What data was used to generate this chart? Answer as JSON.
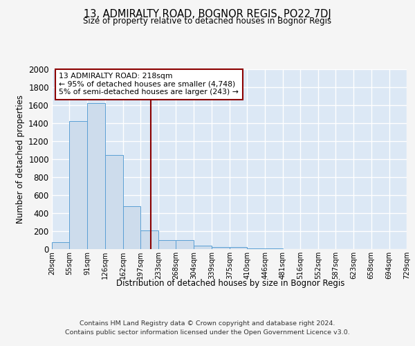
{
  "title": "13, ADMIRALTY ROAD, BOGNOR REGIS, PO22 7DJ",
  "subtitle": "Size of property relative to detached houses in Bognor Regis",
  "xlabel": "Distribution of detached houses by size in Bognor Regis",
  "ylabel": "Number of detached properties",
  "footnote1": "Contains HM Land Registry data © Crown copyright and database right 2024.",
  "footnote2": "Contains public sector information licensed under the Open Government Licence v3.0.",
  "bin_edges": [
    20,
    55,
    91,
    126,
    162,
    197,
    233,
    268,
    304,
    339,
    375,
    410,
    446,
    481,
    516,
    552,
    587,
    623,
    658,
    694,
    729
  ],
  "bar_heights": [
    75,
    1420,
    1620,
    1050,
    480,
    205,
    100,
    100,
    35,
    25,
    20,
    5,
    5,
    3,
    3,
    2,
    1,
    1,
    0,
    0
  ],
  "bar_color": "#cddcec",
  "bar_edge_color": "#5a9fd4",
  "red_line_x": 218,
  "annotation_text_line1": "13 ADMIRALTY ROAD: 218sqm",
  "annotation_text_line2": "← 95% of detached houses are smaller (4,748)",
  "annotation_text_line3": "5% of semi-detached houses are larger (243) →",
  "ylim": [
    0,
    2000
  ],
  "yticks": [
    0,
    200,
    400,
    600,
    800,
    1000,
    1200,
    1400,
    1600,
    1800,
    2000
  ],
  "plot_bg_color": "#dce8f5",
  "grid_color": "#ffffff",
  "fig_bg_color": "#f5f5f5"
}
